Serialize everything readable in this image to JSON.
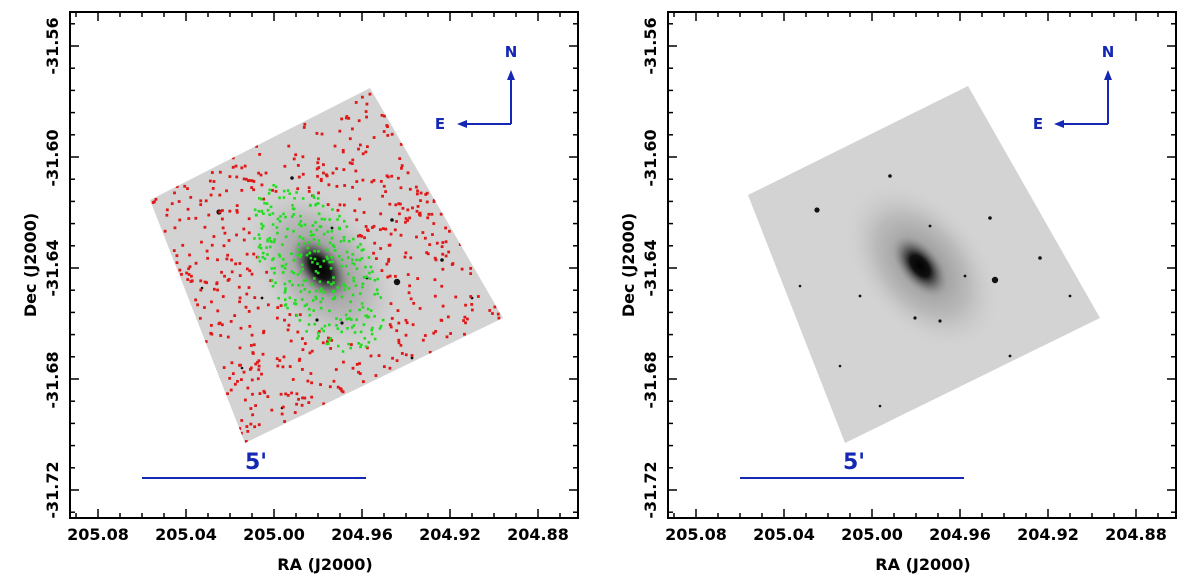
{
  "colors": {
    "annotation": "#1428b4",
    "marker_red": "#e01818",
    "marker_green": "#22dd22",
    "image_bg": "#d3d3d3",
    "frame": "#000000"
  },
  "panels": [
    {
      "id": "left",
      "has_markers": true,
      "xlabel": "RA (J2000)",
      "ylabel": "Dec (J2000)",
      "x_ticks": [
        "205.08",
        "205.04",
        "205.00",
        "204.96",
        "204.92",
        "204.88"
      ],
      "y_ticks": [
        "-31.56",
        "-31.60",
        "-31.64",
        "-31.68",
        "-31.72"
      ],
      "compass": {
        "north": "N",
        "east": "E"
      },
      "scale_bar": {
        "label": "5'"
      }
    },
    {
      "id": "right",
      "has_markers": false,
      "xlabel": "RA (J2000)",
      "ylabel": "Dec (J2000)",
      "x_ticks": [
        "205.08",
        "205.04",
        "205.00",
        "204.96",
        "204.92",
        "204.88"
      ],
      "y_ticks": [
        "-31.56",
        "-31.60",
        "-31.64",
        "-31.68",
        "-31.72"
      ],
      "compass": {
        "north": "N",
        "east": "E"
      },
      "scale_bar": {
        "label": "5'"
      }
    }
  ],
  "chart_data": {
    "type": "scatter",
    "xlabel": "RA (J2000)",
    "ylabel": "Dec (J2000)",
    "xlim": [
      205.1,
      204.87
    ],
    "ylim": [
      -31.745,
      -31.545
    ],
    "x_ticks": [
      205.08,
      205.04,
      205.0,
      204.96,
      204.92,
      204.88
    ],
    "y_ticks": [
      -31.56,
      -31.6,
      -31.64,
      -31.68,
      -31.72
    ]
  }
}
